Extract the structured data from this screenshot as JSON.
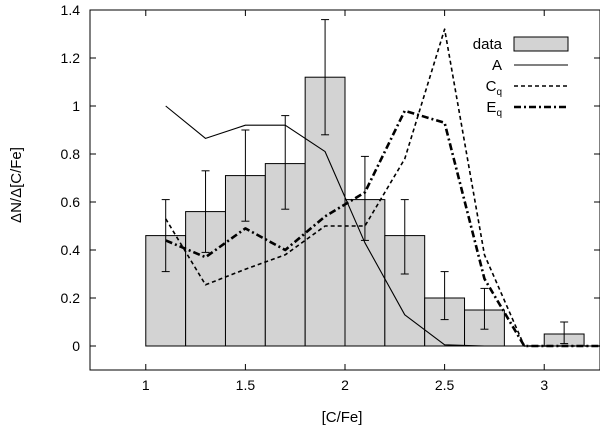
{
  "chart_data": {
    "type": "bar",
    "xlabel": "[C/Fe]",
    "ylabel": "ΔN/Δ[C/Fe]",
    "xlim": [
      0.72,
      3.28
    ],
    "ylim": [
      -0.1,
      1.4
    ],
    "xticks": [
      1,
      1.5,
      2,
      2.5,
      3
    ],
    "xtick_labels": [
      "1",
      "1.5",
      "2",
      "2.5",
      "3"
    ],
    "yticks": [
      0,
      0.2,
      0.4,
      0.6,
      0.8,
      1,
      1.2,
      1.4
    ],
    "ytick_labels": [
      "0",
      "0.2",
      "0.4",
      "0.6",
      "0.8",
      "1",
      "1.2",
      "1.4"
    ],
    "bar_width": 0.2,
    "bars": {
      "name": "data",
      "centers": [
        1.1,
        1.3,
        1.5,
        1.7,
        1.9,
        2.1,
        2.3,
        2.5,
        2.7,
        2.9,
        3.1
      ],
      "values": [
        0.46,
        0.56,
        0.71,
        0.76,
        1.12,
        0.61,
        0.46,
        0.2,
        0.15,
        0.0,
        0.05
      ],
      "err_low": [
        0.31,
        0.39,
        0.52,
        0.57,
        0.88,
        0.44,
        0.3,
        0.11,
        0.07,
        0.0,
        0.01
      ],
      "err_high": [
        0.61,
        0.73,
        0.9,
        0.96,
        1.36,
        0.79,
        0.61,
        0.31,
        0.24,
        0.0,
        0.1
      ]
    },
    "series": [
      {
        "name": "A",
        "style": "solid",
        "x": [
          1.1,
          1.3,
          1.5,
          1.7,
          1.9,
          2.1,
          2.3,
          2.5,
          2.7,
          2.9,
          3.1,
          3.28
        ],
        "y": [
          1.0,
          0.865,
          0.92,
          0.92,
          0.81,
          0.43,
          0.13,
          0.005,
          0.0,
          0.0,
          0.0,
          0.0
        ]
      },
      {
        "name": "C",
        "name_sub": "q",
        "style": "dashed",
        "x": [
          1.1,
          1.3,
          1.5,
          1.7,
          1.9,
          2.1,
          2.3,
          2.5,
          2.7,
          2.9,
          3.1,
          3.28
        ],
        "y": [
          0.53,
          0.255,
          0.32,
          0.38,
          0.5,
          0.5,
          0.78,
          1.32,
          0.38,
          0.0,
          0.0,
          0.0
        ]
      },
      {
        "name": "E",
        "name_sub": "q",
        "style": "dashdot",
        "x": [
          1.1,
          1.3,
          1.5,
          1.7,
          1.9,
          2.1,
          2.3,
          2.5,
          2.7,
          2.9,
          3.1,
          3.28
        ],
        "y": [
          0.44,
          0.37,
          0.49,
          0.4,
          0.54,
          0.64,
          0.98,
          0.93,
          0.28,
          0.0,
          0.0,
          0.0
        ]
      }
    ],
    "legend": {
      "position": "top-right",
      "entries": [
        {
          "label": "data",
          "sub": "",
          "kind": "bar"
        },
        {
          "label": "A",
          "sub": "",
          "kind": "solid"
        },
        {
          "label": "C",
          "sub": "q",
          "kind": "dashed"
        },
        {
          "label": "E",
          "sub": "q",
          "kind": "dashdot"
        }
      ]
    }
  }
}
